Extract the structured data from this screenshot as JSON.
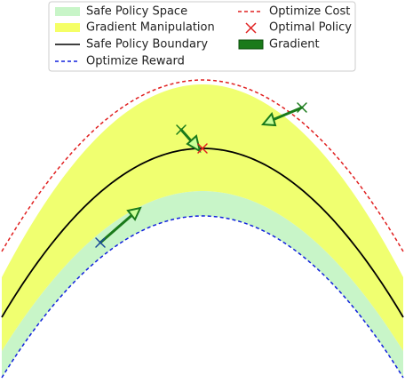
{
  "legend": {
    "items": [
      "Safe Policy Space",
      "Gradient Manipulation",
      "Safe Policy Boundary",
      "Optimize Reward",
      "Optimize Cost",
      "Optimal Policy",
      "Gradient"
    ]
  }
}
